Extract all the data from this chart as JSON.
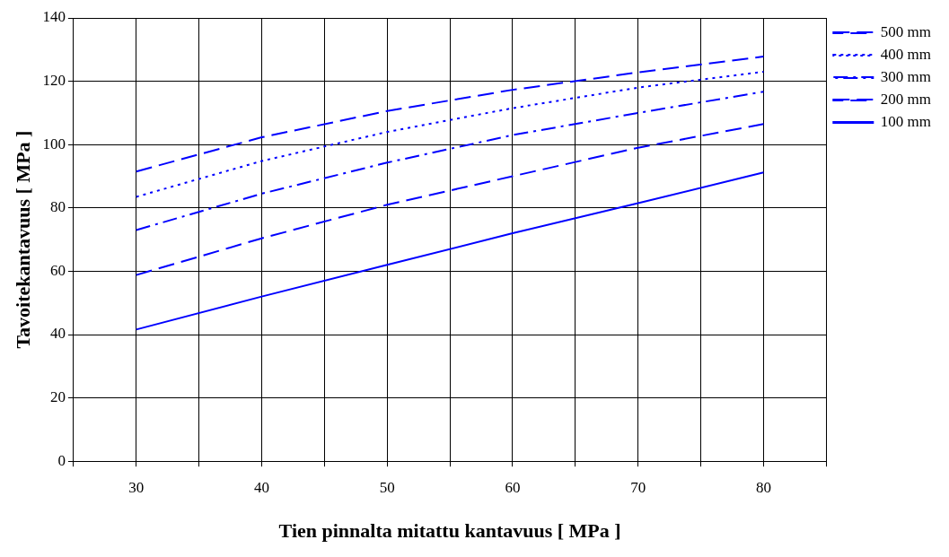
{
  "chart_data": {
    "type": "line",
    "xlabel": "Tien pinnalta mitattu kantavuus [ MPa ]",
    "ylabel": "Tavoitekantavuus [ MPa ]",
    "x": [
      30,
      40,
      50,
      60,
      70,
      80
    ],
    "series": [
      {
        "name": "500 mm",
        "color": "#0000ff",
        "line_style": "dashed",
        "values": [
          91.5,
          102.3,
          110.6,
          117.3,
          122.8,
          127.8
        ]
      },
      {
        "name": "400 mm",
        "color": "#0000ff",
        "line_style": "dotted",
        "values": [
          83.5,
          94.8,
          104,
          111.5,
          118,
          123
        ]
      },
      {
        "name": "300 mm",
        "color": "#0000ff",
        "line_style": "dashdot",
        "values": [
          73,
          84.5,
          94.3,
          103,
          110,
          116.7
        ]
      },
      {
        "name": "200 mm",
        "color": "#0000ff",
        "line_style": "dashed",
        "values": [
          58.8,
          70.4,
          81,
          90,
          99,
          106.5
        ]
      },
      {
        "name": "100 mm",
        "color": "#0000ff",
        "line_style": "solid",
        "values": [
          41.6,
          52,
          62,
          72,
          81.5,
          91.2
        ]
      }
    ],
    "xlim": [
      25,
      85
    ],
    "xticks": [
      {
        "value": 25,
        "label": null
      },
      30,
      {
        "value": 35,
        "label": null
      },
      40,
      {
        "value": 45,
        "label": null
      },
      50,
      {
        "value": 55,
        "label": null
      },
      60,
      {
        "value": 65,
        "label": null
      },
      70,
      {
        "value": 75,
        "label": null
      },
      80,
      {
        "value": 85,
        "label": null
      }
    ],
    "ylim": [
      0,
      140
    ],
    "yticks": [
      0,
      20,
      40,
      60,
      80,
      100,
      120,
      140
    ],
    "grid": true,
    "legend": "right",
    "marker": "none"
  }
}
